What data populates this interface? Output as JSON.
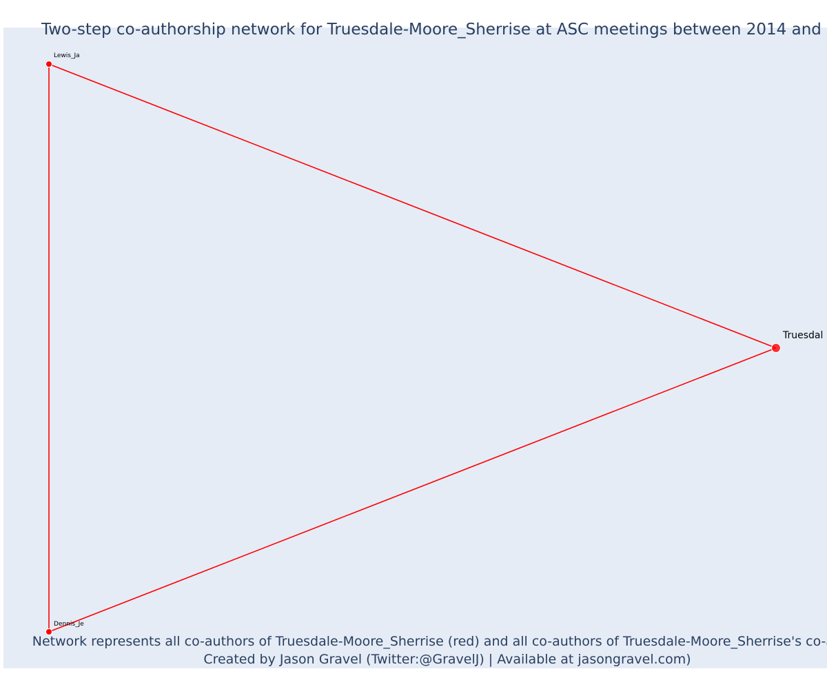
{
  "title": "Two-step co-authorship network for Truesdale-Moore_Sherrise at ASC meetings between 2014 and",
  "caption": {
    "line1": "Network represents all co-authors of Truesdale-Moore_Sherrise (red) and all co-authors of Truesdale-Moore_Sherrise's co-autho",
    "line2": "Created by Jason Gravel (Twitter:@GravelJ) | Available at jasongravel.com)"
  },
  "colors": {
    "plot_background": "#e5ecf6",
    "edge": "#ff0000",
    "node": "#ff0000",
    "text": "#2a3f5f"
  },
  "nodes": [
    {
      "id": "lewis",
      "label": "Lewis_Ja"
    },
    {
      "id": "dennis",
      "label": "Dennis_Je"
    },
    {
      "id": "truesdale",
      "label": "Truesdal"
    }
  ],
  "edges": [
    {
      "source": "lewis",
      "target": "truesdale"
    },
    {
      "source": "dennis",
      "target": "truesdale"
    },
    {
      "source": "lewis",
      "target": "dennis"
    }
  ]
}
